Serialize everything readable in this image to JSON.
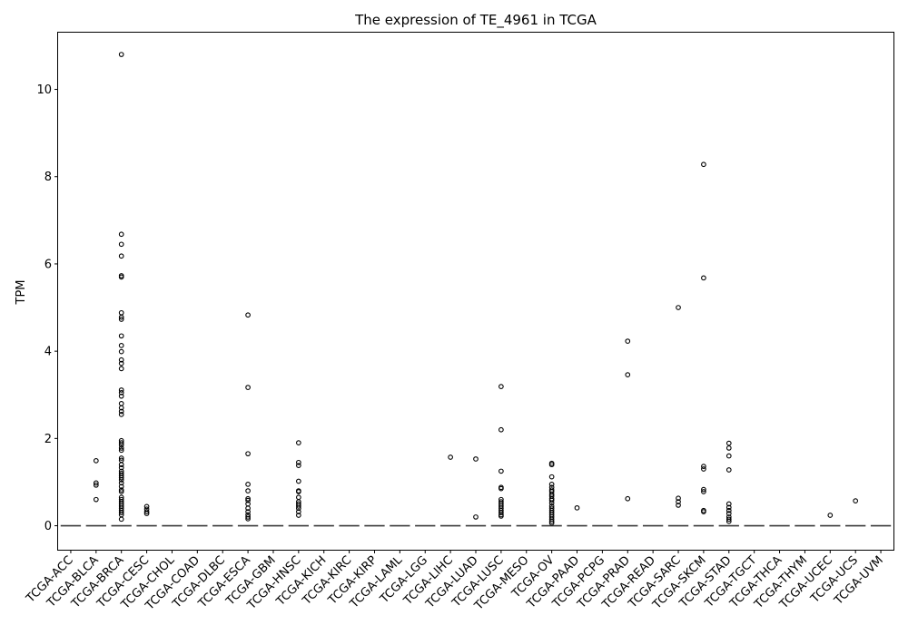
{
  "chart_data": {
    "type": "box",
    "title": "The expression of TE_4961 in TCGA",
    "xlabel": "",
    "ylabel": "TPM",
    "ylim": [
      -0.55,
      11.3
    ],
    "yticks": [
      0,
      2,
      4,
      6,
      8,
      10
    ],
    "grid": false,
    "categories": [
      "TCGA-ACC",
      "TCGA-BLCA",
      "TCGA-BRCA",
      "TCGA-CESC",
      "TCGA-CHOL",
      "TCGA-COAD",
      "TCGA-DLBC",
      "TCGA-ESCA",
      "TCGA-GBM",
      "TCGA-HNSC",
      "TCGA-KICH",
      "TCGA-KIRC",
      "TCGA-KIRP",
      "TCGA-LAML",
      "TCGA-LGG",
      "TCGA-LIHC",
      "TCGA-LUAD",
      "TCGA-LUSC",
      "TCGA-MESO",
      "TCGA-OV",
      "TCGA-PAAD",
      "TCGA-PCPG",
      "TCGA-PRAD",
      "TCGA-READ",
      "TCGA-SARC",
      "TCGA-SKCM",
      "TCGA-STAD",
      "TCGA-TGCT",
      "TCGA-THCA",
      "TCGA-THYM",
      "TCGA-UCEC",
      "TCGA-UCS",
      "TCGA-UVM"
    ],
    "medians": [
      0,
      0,
      0,
      0,
      0,
      0,
      0,
      0,
      0,
      0,
      0,
      0,
      0,
      0,
      0,
      0,
      0,
      0,
      0,
      0,
      0,
      0,
      0,
      0,
      0,
      0,
      0,
      0,
      0,
      0,
      0,
      0,
      0
    ],
    "outliers": [
      [],
      [
        1.49,
        0.98,
        0.93,
        0.6
      ],
      [
        10.8,
        6.68,
        6.45,
        6.18,
        5.73,
        5.7,
        4.88,
        4.78,
        4.73,
        4.35,
        4.13,
        3.99,
        3.8,
        3.72,
        3.6,
        3.11,
        3.05,
        2.97,
        2.8,
        2.7,
        2.62,
        2.55,
        1.95,
        1.9,
        1.85,
        1.78,
        1.73,
        1.55,
        1.5,
        1.4,
        1.33,
        1.25,
        1.2,
        1.15,
        1.1,
        1.05,
        0.98,
        0.9,
        0.82,
        0.78,
        0.65,
        0.6,
        0.55,
        0.5,
        0.45,
        0.4,
        0.35,
        0.3,
        0.25,
        0.15
      ],
      [
        0.44,
        0.38,
        0.32,
        0.28
      ],
      [],
      [],
      [],
      [
        4.83,
        3.17,
        1.65,
        0.95,
        0.8,
        0.62,
        0.58,
        0.5,
        0.4,
        0.32,
        0.25,
        0.2,
        0.16
      ],
      [],
      [
        1.9,
        1.45,
        1.38,
        1.02,
        0.8,
        0.78,
        0.65,
        0.55,
        0.5,
        0.45,
        0.4,
        0.32,
        0.24
      ],
      [],
      [],
      [],
      [],
      [],
      [
        1.57
      ],
      [
        1.53,
        0.2
      ],
      [
        3.19,
        2.2,
        1.25,
        0.88,
        0.85,
        0.6,
        0.55,
        0.5,
        0.45,
        0.4,
        0.35,
        0.3,
        0.25,
        0.22
      ],
      [],
      [
        1.43,
        1.4,
        1.12,
        0.95,
        0.88,
        0.82,
        0.78,
        0.72,
        0.68,
        0.62,
        0.58,
        0.52,
        0.45,
        0.4,
        0.35,
        0.3,
        0.25,
        0.2,
        0.15,
        0.1,
        0.06
      ],
      [
        0.41
      ],
      [],
      [
        4.23,
        3.46,
        0.62
      ],
      [],
      [
        5.0,
        0.63,
        0.55,
        0.47
      ],
      [
        8.28,
        5.68,
        1.36,
        1.3,
        0.83,
        0.78,
        0.35,
        0.32
      ],
      [
        1.89,
        1.78,
        1.6,
        1.28,
        0.5,
        0.42,
        0.35,
        0.28,
        0.2,
        0.15,
        0.1
      ],
      [],
      [],
      [],
      [
        0.24
      ],
      [
        0.57
      ],
      []
    ]
  }
}
